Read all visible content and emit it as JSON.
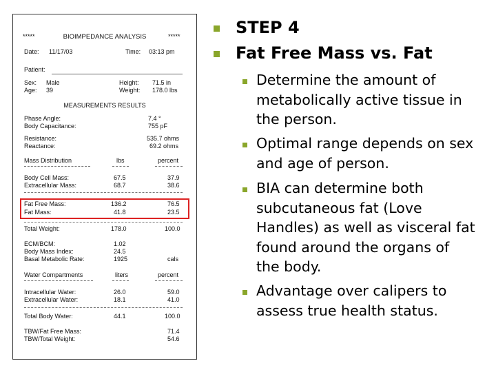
{
  "report": {
    "stars_left": "*****",
    "title": "BIOIMPEDANCE ANALYSIS",
    "stars_right": "*****",
    "date_label": "Date:",
    "date_value": "11/17/03",
    "time_label": "Time:",
    "time_value": "03:13 pm",
    "patient_label": "Patient:",
    "sex_label": "Sex:",
    "sex_value": "Male",
    "height_label": "Height:",
    "height_value": "71.5 in",
    "age_label": "Age:",
    "age_value": "39",
    "weight_label": "Weight:",
    "weight_value": "178.0 lbs",
    "measurements_heading": "MEASUREMENTS RESULTS",
    "phase_angle_label": "Phase Angle:",
    "phase_angle_value": "7.4 °",
    "capacitance_label": "Body Capacitance:",
    "capacitance_value": "755 pF",
    "resistance_label": "Resistance:",
    "resistance_value": "535.7 ohms",
    "reactance_label": "Reactance:",
    "reactance_value": "69.2 ohms",
    "mass_dist_label": "Mass Distribution",
    "lbs_header": "lbs",
    "percent_header": "percent",
    "body_cell_mass_label": "Body Cell Mass:",
    "body_cell_mass_lbs": "67.5",
    "body_cell_mass_pct": "37.9",
    "extracellular_mass_label": "Extracellular Mass:",
    "extracellular_mass_lbs": "68.7",
    "extracellular_mass_pct": "38.6",
    "fat_free_mass_label": "Fat Free Mass:",
    "fat_free_mass_lbs": "136.2",
    "fat_free_mass_pct": "76.5",
    "fat_mass_label": "Fat Mass:",
    "fat_mass_lbs": "41.8",
    "fat_mass_pct": "23.5",
    "total_weight_label": "Total Weight:",
    "total_weight_lbs": "178.0",
    "total_weight_pct": "100.0",
    "ecm_bcm_label": "ECM/BCM:",
    "ecm_bcm_value": "1.02",
    "bmi_label": "Body Mass Index:",
    "bmi_value": "24.5",
    "bmr_label": "Basal Metabolic Rate:",
    "bmr_value": "1925",
    "bmr_unit": "cals",
    "water_label": "Water Compartments",
    "liters_header": "liters",
    "water_percent_header": "percent",
    "icw_label": "Intracellular Water:",
    "icw_liters": "26.0",
    "icw_pct": "59.0",
    "ecw_label": "Extracellular Water:",
    "ecw_liters": "18.1",
    "ecw_pct": "41.0",
    "tbw_label": "Total Body Water:",
    "tbw_liters": "44.1",
    "tbw_pct": "100.0",
    "tbw_ffm_label": "TBW/Fat Free Mass:",
    "tbw_ffm_value": "71.4",
    "tbw_tw_label": "TBW/Total Weight:",
    "tbw_tw_value": "54.6"
  },
  "slide": {
    "bullet_color": "#8aa62b",
    "highlight_color": "#dd2222",
    "heading1": "STEP 4",
    "heading2": "Fat Free Mass vs. Fat",
    "points": [
      [
        "Determine the amount of",
        "metabolically active tissue in",
        "the person."
      ],
      [
        "Optimal range depends on sex",
        "and age of person."
      ],
      [
        "BIA can determine both",
        "subcutaneous fat (Love",
        "Handles) as well as visceral fat",
        "found around the organs of",
        "the body."
      ],
      [
        "Advantage over calipers to",
        "assess true health status."
      ]
    ]
  }
}
